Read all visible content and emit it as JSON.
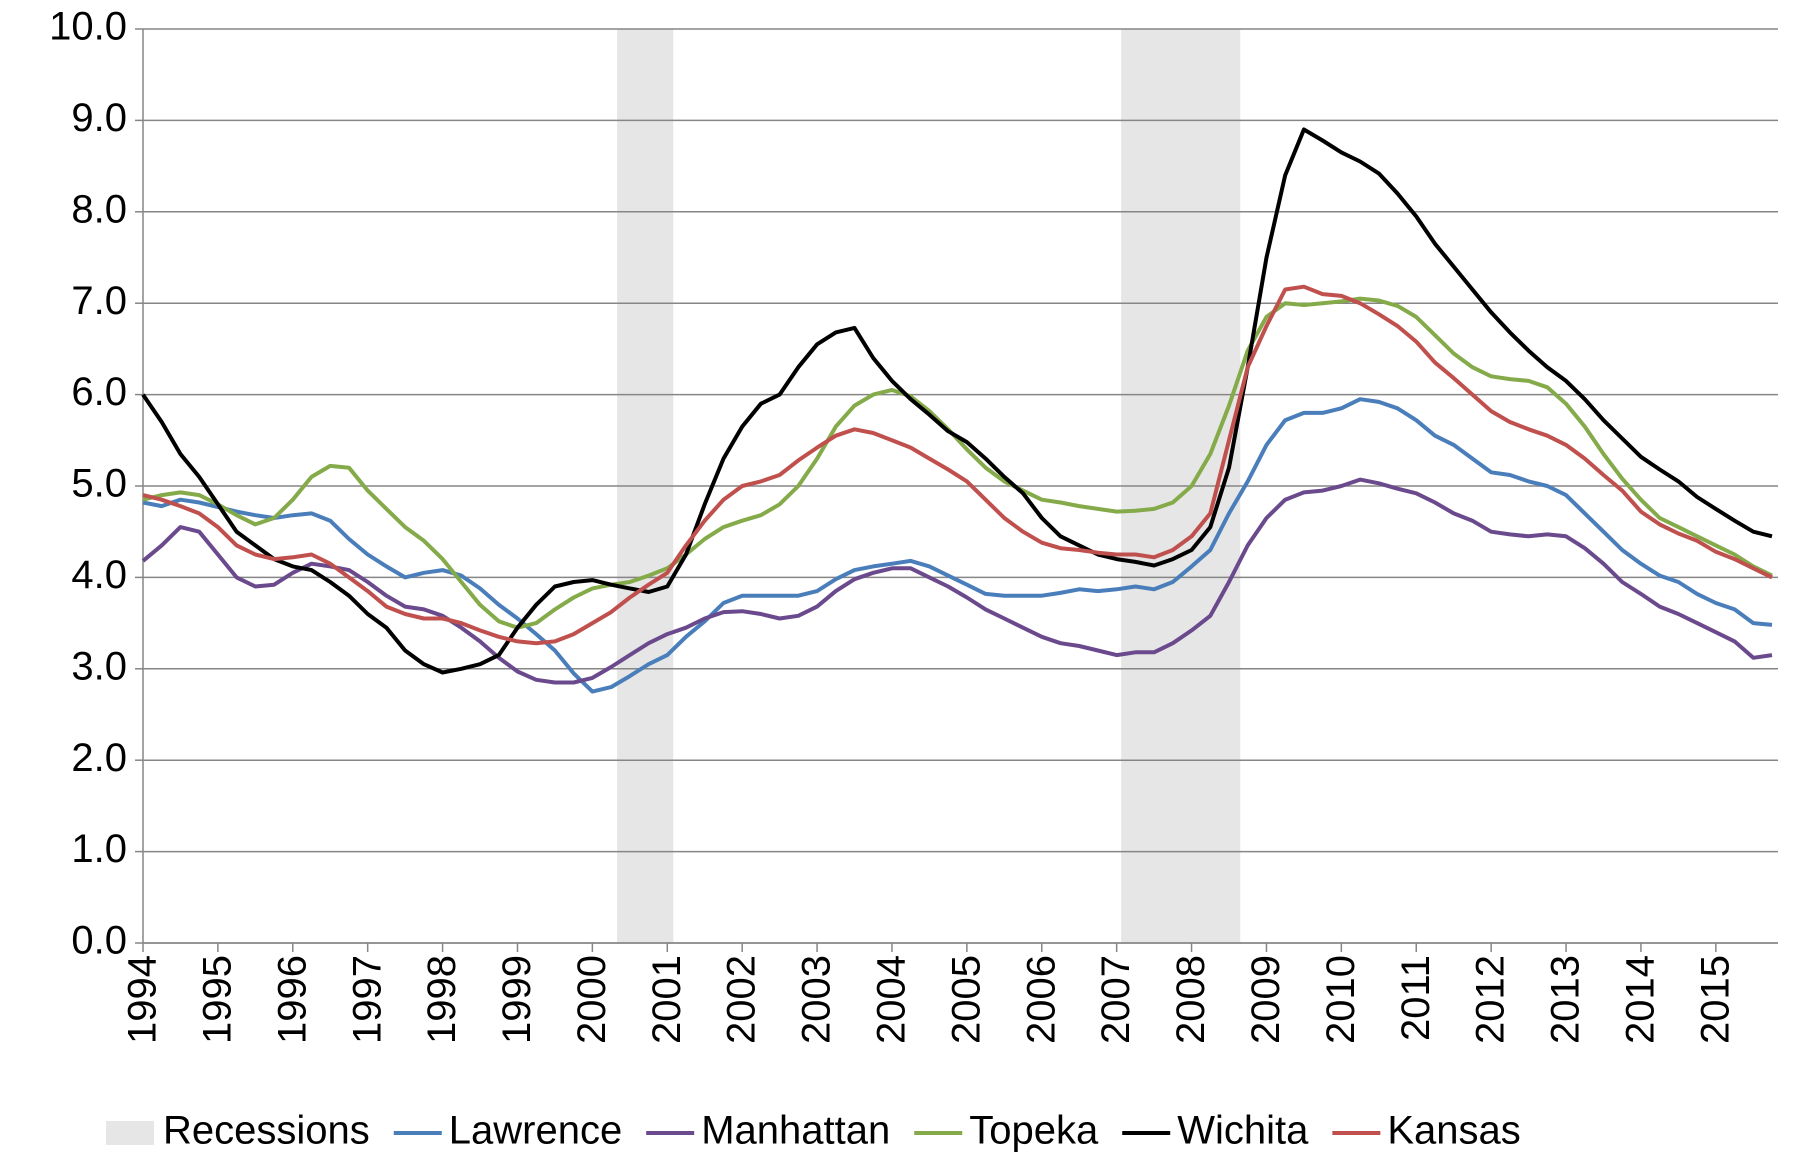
{
  "chart_data": {
    "type": "line",
    "x": [
      1994,
      1994.25,
      1994.5,
      1994.75,
      1995,
      1995.25,
      1995.5,
      1995.75,
      1996,
      1996.25,
      1996.5,
      1996.75,
      1997,
      1997.25,
      1997.5,
      1997.75,
      1998,
      1998.25,
      1998.5,
      1998.75,
      1999,
      1999.25,
      1999.5,
      1999.75,
      2000,
      2000.25,
      2000.5,
      2000.75,
      2001,
      2001.25,
      2001.5,
      2001.75,
      2002,
      2002.25,
      2002.5,
      2002.75,
      2003,
      2003.25,
      2003.5,
      2003.75,
      2004,
      2004.25,
      2004.5,
      2004.75,
      2005,
      2005.25,
      2005.5,
      2005.75,
      2006,
      2006.25,
      2006.5,
      2006.75,
      2007,
      2007.25,
      2007.5,
      2007.75,
      2008,
      2008.25,
      2008.5,
      2008.75,
      2009,
      2009.25,
      2009.5,
      2009.75,
      2010,
      2010.25,
      2010.5,
      2010.75,
      2011,
      2011.25,
      2011.5,
      2011.75,
      2012,
      2012.25,
      2012.5,
      2012.75,
      2013,
      2013.25,
      2013.5,
      2013.75,
      2014,
      2014.25,
      2014.5,
      2014.75,
      2015,
      2015.25,
      2015.5,
      2015.75
    ],
    "recessions": {
      "name": "Recessions",
      "color": "#e6e6e6",
      "ranges": [
        [
          2000.33,
          2001.08
        ],
        [
          2007.06,
          2008.65
        ]
      ]
    },
    "series": [
      {
        "name": "Lawrence",
        "color": "#4a7ebb",
        "values": [
          4.82,
          4.78,
          4.85,
          4.82,
          4.77,
          4.72,
          4.68,
          4.65,
          4.68,
          4.7,
          4.62,
          4.42,
          4.25,
          4.12,
          4.0,
          4.05,
          4.08,
          4.02,
          3.88,
          3.7,
          3.55,
          3.38,
          3.2,
          2.95,
          2.75,
          2.8,
          2.92,
          3.05,
          3.15,
          3.35,
          3.52,
          3.72,
          3.8,
          3.8,
          3.8,
          3.8,
          3.85,
          3.98,
          4.08,
          4.12,
          4.15,
          4.18,
          4.12,
          4.02,
          3.92,
          3.82,
          3.8,
          3.8,
          3.8,
          3.83,
          3.87,
          3.85,
          3.87,
          3.9,
          3.87,
          3.95,
          4.12,
          4.3,
          4.7,
          5.05,
          5.45,
          5.72,
          5.8,
          5.8,
          5.85,
          5.95,
          5.92,
          5.85,
          5.72,
          5.55,
          5.45,
          5.3,
          5.15,
          5.12,
          5.05,
          5.0,
          4.9,
          4.7,
          4.5,
          4.3,
          4.15,
          4.02,
          3.95,
          3.82,
          3.72,
          3.65,
          3.5,
          3.48
        ]
      },
      {
        "name": "Manhattan",
        "color": "#6a4a8c",
        "values": [
          4.18,
          4.35,
          4.55,
          4.5,
          4.25,
          4.0,
          3.9,
          3.92,
          4.05,
          4.15,
          4.12,
          4.08,
          3.95,
          3.8,
          3.68,
          3.65,
          3.58,
          3.45,
          3.3,
          3.12,
          2.97,
          2.88,
          2.85,
          2.85,
          2.9,
          3.02,
          3.15,
          3.28,
          3.38,
          3.45,
          3.55,
          3.62,
          3.63,
          3.6,
          3.55,
          3.58,
          3.68,
          3.85,
          3.98,
          4.05,
          4.1,
          4.1,
          4.0,
          3.9,
          3.78,
          3.65,
          3.55,
          3.45,
          3.35,
          3.28,
          3.25,
          3.2,
          3.15,
          3.18,
          3.18,
          3.28,
          3.42,
          3.58,
          3.95,
          4.35,
          4.65,
          4.85,
          4.93,
          4.95,
          5.0,
          5.07,
          5.03,
          4.97,
          4.92,
          4.82,
          4.7,
          4.62,
          4.5,
          4.47,
          4.45,
          4.47,
          4.45,
          4.32,
          4.15,
          3.95,
          3.82,
          3.68,
          3.6,
          3.5,
          3.4,
          3.3,
          3.12,
          3.15
        ]
      },
      {
        "name": "Topeka",
        "color": "#84aa4a",
        "values": [
          4.85,
          4.9,
          4.93,
          4.9,
          4.8,
          4.68,
          4.58,
          4.65,
          4.85,
          5.1,
          5.22,
          5.2,
          4.95,
          4.75,
          4.55,
          4.4,
          4.2,
          3.95,
          3.7,
          3.52,
          3.45,
          3.5,
          3.65,
          3.78,
          3.88,
          3.92,
          3.95,
          4.02,
          4.1,
          4.25,
          4.42,
          4.55,
          4.62,
          4.68,
          4.8,
          5.0,
          5.3,
          5.65,
          5.88,
          6.0,
          6.05,
          5.98,
          5.82,
          5.62,
          5.4,
          5.2,
          5.05,
          4.95,
          4.85,
          4.82,
          4.78,
          4.75,
          4.72,
          4.73,
          4.75,
          4.82,
          5.0,
          5.35,
          5.88,
          6.48,
          6.85,
          7.0,
          6.98,
          7.0,
          7.02,
          7.05,
          7.03,
          6.97,
          6.85,
          6.65,
          6.45,
          6.3,
          6.2,
          6.17,
          6.15,
          6.08,
          5.9,
          5.65,
          5.35,
          5.08,
          4.85,
          4.65,
          4.55,
          4.45,
          4.35,
          4.25,
          4.12,
          4.02
        ]
      },
      {
        "name": "Wichita",
        "color": "#000000",
        "values": [
          6.0,
          5.7,
          5.35,
          5.1,
          4.8,
          4.5,
          4.35,
          4.2,
          4.12,
          4.08,
          3.95,
          3.8,
          3.6,
          3.45,
          3.2,
          3.05,
          2.96,
          3.0,
          3.05,
          3.15,
          3.45,
          3.7,
          3.9,
          3.95,
          3.97,
          3.92,
          3.88,
          3.84,
          3.9,
          4.25,
          4.8,
          5.3,
          5.65,
          5.9,
          6.0,
          6.3,
          6.55,
          6.68,
          6.73,
          6.4,
          6.15,
          5.95,
          5.78,
          5.6,
          5.48,
          5.3,
          5.1,
          4.92,
          4.65,
          4.45,
          4.35,
          4.25,
          4.2,
          4.17,
          4.13,
          4.2,
          4.3,
          4.55,
          5.2,
          6.3,
          7.5,
          8.4,
          8.9,
          8.78,
          8.65,
          8.55,
          8.42,
          8.2,
          7.95,
          7.65,
          7.4,
          7.15,
          6.9,
          6.68,
          6.48,
          6.3,
          6.15,
          5.95,
          5.72,
          5.52,
          5.32,
          5.18,
          5.05,
          4.88,
          4.75,
          4.62,
          4.5,
          4.45
        ]
      },
      {
        "name": "Kansas",
        "color": "#c0504d",
        "values": [
          4.9,
          4.85,
          4.78,
          4.7,
          4.55,
          4.35,
          4.25,
          4.2,
          4.22,
          4.25,
          4.15,
          4.0,
          3.85,
          3.68,
          3.6,
          3.55,
          3.55,
          3.5,
          3.42,
          3.35,
          3.3,
          3.28,
          3.3,
          3.38,
          3.5,
          3.62,
          3.78,
          3.92,
          4.05,
          4.35,
          4.62,
          4.85,
          5.0,
          5.05,
          5.12,
          5.28,
          5.42,
          5.55,
          5.62,
          5.58,
          5.5,
          5.42,
          5.3,
          5.18,
          5.05,
          4.85,
          4.65,
          4.5,
          4.38,
          4.32,
          4.3,
          4.27,
          4.25,
          4.25,
          4.22,
          4.3,
          4.45,
          4.7,
          5.5,
          6.3,
          6.75,
          7.15,
          7.18,
          7.1,
          7.08,
          7.0,
          6.88,
          6.75,
          6.58,
          6.35,
          6.18,
          6.0,
          5.82,
          5.7,
          5.62,
          5.55,
          5.45,
          5.3,
          5.12,
          4.95,
          4.72,
          4.58,
          4.48,
          4.4,
          4.28,
          4.2,
          4.1,
          4.0
        ]
      }
    ],
    "xlim": [
      1994,
      2015.83
    ],
    "xticks": [
      1994,
      1995,
      1996,
      1997,
      1998,
      1999,
      2000,
      2001,
      2002,
      2003,
      2004,
      2005,
      2006,
      2007,
      2008,
      2009,
      2010,
      2011,
      2012,
      2013,
      2014,
      2015
    ],
    "ylim": [
      0,
      10
    ],
    "yticks": [
      {
        "value": 0,
        "label": "0.0"
      },
      {
        "value": 1,
        "label": "1.0"
      },
      {
        "value": 2,
        "label": "2.0"
      },
      {
        "value": 3,
        "label": "3.0"
      },
      {
        "value": 4,
        "label": "4.0"
      },
      {
        "value": 5,
        "label": "5.0"
      },
      {
        "value": 6,
        "label": "6.0"
      },
      {
        "value": 7,
        "label": "7.0"
      },
      {
        "value": 8,
        "label": "8.0"
      },
      {
        "value": 9,
        "label": "9.0"
      },
      {
        "value": 10,
        "label": "10.0"
      }
    ],
    "grid": true,
    "legend": "bottom"
  }
}
